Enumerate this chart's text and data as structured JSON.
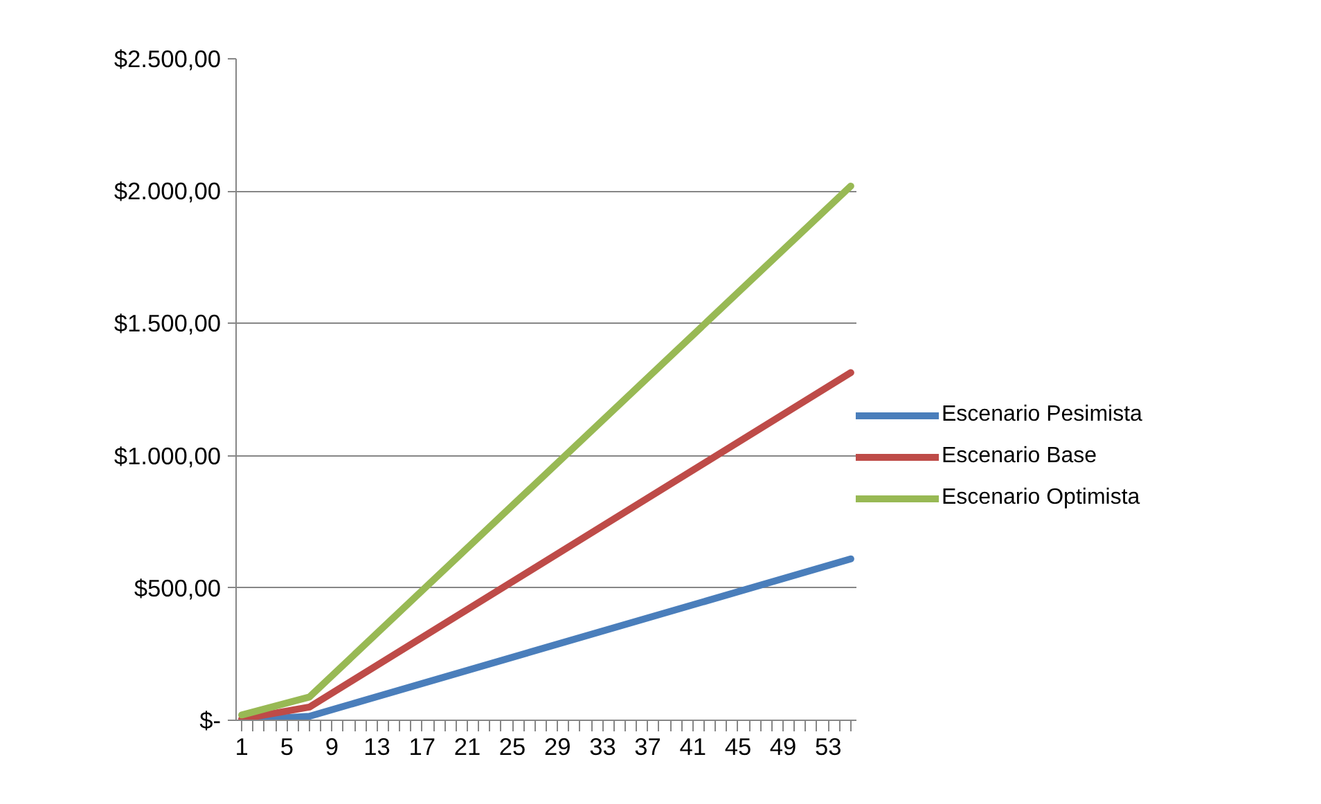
{
  "chart_data": {
    "type": "line",
    "xlim": [
      0.5,
      55.5
    ],
    "ylim": [
      0,
      2500
    ],
    "xticks": [
      {
        "value": 1,
        "label": "1"
      },
      {
        "value": 2,
        "label": null
      },
      {
        "value": 3,
        "label": null
      },
      {
        "value": 4,
        "label": null
      },
      {
        "value": 5,
        "label": "5"
      },
      {
        "value": 6,
        "label": null
      },
      {
        "value": 7,
        "label": null
      },
      {
        "value": 8,
        "label": null
      },
      {
        "value": 9,
        "label": "9"
      },
      {
        "value": 10,
        "label": null
      },
      {
        "value": 11,
        "label": null
      },
      {
        "value": 12,
        "label": null
      },
      {
        "value": 13,
        "label": "13"
      },
      {
        "value": 14,
        "label": null
      },
      {
        "value": 15,
        "label": null
      },
      {
        "value": 16,
        "label": null
      },
      {
        "value": 17,
        "label": "17"
      },
      {
        "value": 18,
        "label": null
      },
      {
        "value": 19,
        "label": null
      },
      {
        "value": 20,
        "label": null
      },
      {
        "value": 21,
        "label": "21"
      },
      {
        "value": 22,
        "label": null
      },
      {
        "value": 23,
        "label": null
      },
      {
        "value": 24,
        "label": null
      },
      {
        "value": 25,
        "label": "25"
      },
      {
        "value": 26,
        "label": null
      },
      {
        "value": 27,
        "label": null
      },
      {
        "value": 28,
        "label": null
      },
      {
        "value": 29,
        "label": "29"
      },
      {
        "value": 30,
        "label": null
      },
      {
        "value": 31,
        "label": null
      },
      {
        "value": 32,
        "label": null
      },
      {
        "value": 33,
        "label": "33"
      },
      {
        "value": 34,
        "label": null
      },
      {
        "value": 35,
        "label": null
      },
      {
        "value": 36,
        "label": null
      },
      {
        "value": 37,
        "label": "37"
      },
      {
        "value": 38,
        "label": null
      },
      {
        "value": 39,
        "label": null
      },
      {
        "value": 40,
        "label": null
      },
      {
        "value": 41,
        "label": "41"
      },
      {
        "value": 42,
        "label": null
      },
      {
        "value": 43,
        "label": null
      },
      {
        "value": 44,
        "label": null
      },
      {
        "value": 45,
        "label": "45"
      },
      {
        "value": 46,
        "label": null
      },
      {
        "value": 47,
        "label": null
      },
      {
        "value": 48,
        "label": null
      },
      {
        "value": 49,
        "label": "49"
      },
      {
        "value": 50,
        "label": null
      },
      {
        "value": 51,
        "label": null
      },
      {
        "value": 52,
        "label": null
      },
      {
        "value": 53,
        "label": "53"
      },
      {
        "value": 54,
        "label": null
      },
      {
        "value": 55,
        "label": null
      }
    ],
    "yticks": [
      {
        "value": 0,
        "label": "$-"
      },
      {
        "value": 500,
        "label": "$500,00"
      },
      {
        "value": 1000,
        "label": "$1.000,00"
      },
      {
        "value": 1500,
        "label": "$1.500,00"
      },
      {
        "value": 2000,
        "label": "$2.000,00"
      },
      {
        "value": 2500,
        "label": "$2.500,00"
      }
    ],
    "grid": "y",
    "legend": "right",
    "marker": "none",
    "line_style": "solid",
    "series": [
      {
        "name": "Escenario Pesimista",
        "color": "#4a7ebb",
        "x": [
          1,
          7,
          55
        ],
        "values": [
          0,
          15,
          610
        ]
      },
      {
        "name": "Escenario Base",
        "color": "#be4b48",
        "x": [
          1,
          7,
          55
        ],
        "values": [
          5,
          50,
          1314
        ]
      },
      {
        "name": "Escenario Optimista",
        "color": "#98b954",
        "x": [
          1,
          7,
          55
        ],
        "values": [
          20,
          88,
          2019
        ]
      }
    ]
  }
}
